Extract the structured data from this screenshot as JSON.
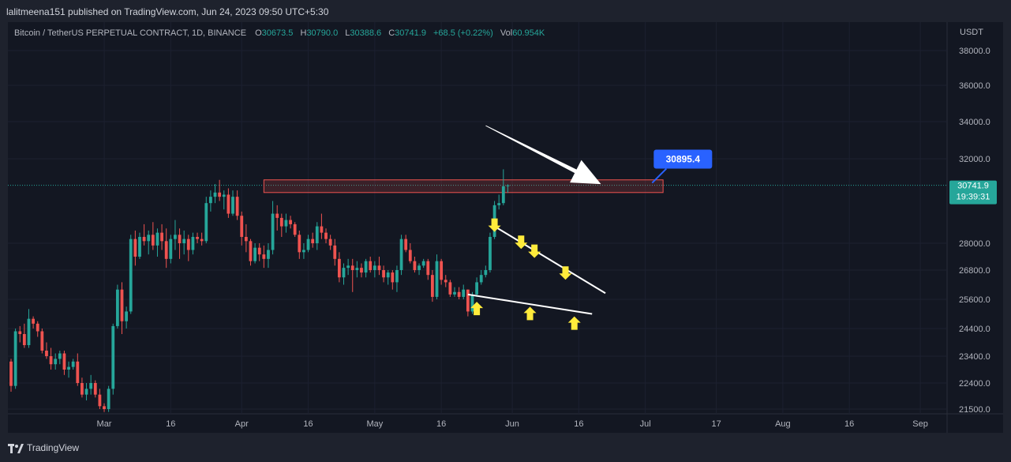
{
  "header": {
    "published": "lalitmeena151 published on TradingView.com, Jun 24, 2023 09:50 UTC+5:30"
  },
  "legend": {
    "symbol": "Bitcoin / TetherUS PERPETUAL CONTRACT, 1D, BINANCE",
    "o_label": "O",
    "o_value": "30673.5",
    "h_label": "H",
    "h_value": "30790.0",
    "l_label": "L",
    "l_value": "30388.6",
    "c_label": "C",
    "c_value": "30741.9",
    "change": "+68.5 (+0.22%)",
    "vol_label": "Vol",
    "vol_value": "60.954K"
  },
  "price_axis": {
    "currency": "USDT",
    "current_price": "30741.9",
    "countdown": "19:39:31"
  },
  "annotation": {
    "callout": "30895.4"
  },
  "footer": {
    "brand": "TradingView"
  },
  "colors": {
    "up": "#26a69a",
    "down": "#ef5350",
    "background": "#131722",
    "callout": "#2962ff",
    "marker": "#ffeb3b"
  },
  "chart_data": {
    "type": "candlestick",
    "symbol": "BTCUSDT.P",
    "interval": "1D",
    "x_axis_ticks": [
      "Mar",
      "16",
      "Apr",
      "16",
      "May",
      "16",
      "Jun",
      "16",
      "Jul",
      "17",
      "Aug",
      "16",
      "Sep"
    ],
    "y_axis_ticks": [
      38000,
      36000,
      34000,
      32000,
      28000,
      26800,
      25600,
      24400,
      23400,
      22400,
      21500
    ],
    "ylim": [
      21300,
      39000
    ],
    "resistance_zone": [
      30400,
      31000
    ],
    "trendlines": [
      {
        "from": "2023-05-28",
        "to": "2023-06-22",
        "y": [
          28800,
          25850
        ]
      },
      {
        "from": "2023-05-22",
        "to": "2023-06-19",
        "y": [
          25800,
          25000
        ]
      }
    ],
    "markers": {
      "down": [
        [
          "2023-05-28",
          28650
        ],
        [
          "2023-06-03",
          27850
        ],
        [
          "2023-06-06",
          27450
        ],
        [
          "2023-06-13",
          26500
        ]
      ],
      "up": [
        [
          "2023-05-24",
          25400
        ],
        [
          "2023-06-05",
          25200
        ],
        [
          "2023-06-15",
          24800
        ]
      ]
    },
    "arrow_target": [
      "2023-06-21",
      30800
    ],
    "callout": {
      "date": "2023-06-24",
      "value": 30895.4
    },
    "last_price": 30741.9,
    "series": [
      {
        "name": "",
        "start_date": "2023-02-08",
        "ohlc": [
          [
            23200,
            23300,
            22100,
            22300
          ],
          [
            22300,
            24400,
            22200,
            24300
          ],
          [
            24300,
            24500,
            23900,
            24200
          ],
          [
            24200,
            24600,
            23700,
            23800
          ],
          [
            23800,
            25200,
            23700,
            24800
          ],
          [
            24800,
            24900,
            24400,
            24600
          ],
          [
            24600,
            24700,
            24100,
            24300
          ],
          [
            24300,
            24400,
            23500,
            23600
          ],
          [
            23600,
            23900,
            23300,
            23400
          ],
          [
            23400,
            23700,
            22900,
            23100
          ],
          [
            23100,
            23500,
            22900,
            23300
          ],
          [
            23300,
            23600,
            23100,
            23500
          ],
          [
            23500,
            23600,
            22700,
            22900
          ],
          [
            22900,
            23200,
            22600,
            23000
          ],
          [
            23000,
            23300,
            22900,
            23200
          ],
          [
            23200,
            23500,
            22300,
            22400
          ],
          [
            22400,
            22600,
            21900,
            22000
          ],
          [
            22000,
            22400,
            21800,
            22200
          ],
          [
            22200,
            22700,
            22000,
            22400
          ],
          [
            22400,
            22500,
            21900,
            22000
          ],
          [
            22000,
            22200,
            21500,
            21600
          ],
          [
            21600,
            21700,
            21400,
            21500
          ],
          [
            21500,
            22300,
            21400,
            22200
          ],
          [
            22200,
            24600,
            22000,
            24500
          ],
          [
            24500,
            26200,
            24400,
            26000
          ],
          [
            26000,
            26300,
            24200,
            24700
          ],
          [
            24700,
            25300,
            24400,
            25100
          ],
          [
            25100,
            28400,
            25000,
            28200
          ],
          [
            28200,
            28600,
            27000,
            27400
          ],
          [
            27400,
            28500,
            27300,
            28300
          ],
          [
            28300,
            28900,
            27900,
            28100
          ],
          [
            28100,
            28600,
            27500,
            28400
          ],
          [
            28400,
            29000,
            27700,
            27900
          ],
          [
            27900,
            28700,
            27400,
            28500
          ],
          [
            28500,
            28900,
            27700,
            28100
          ],
          [
            28100,
            28700,
            26900,
            27300
          ],
          [
            27300,
            28400,
            27100,
            28200
          ],
          [
            28200,
            29100,
            27700,
            28400
          ],
          [
            28400,
            28700,
            27300,
            28000
          ],
          [
            28000,
            28600,
            27500,
            28200
          ],
          [
            28200,
            28400,
            27200,
            27700
          ],
          [
            27700,
            28500,
            27500,
            28300
          ],
          [
            28300,
            28500,
            28000,
            28200
          ],
          [
            28200,
            28500,
            27900,
            28100
          ],
          [
            28100,
            30200,
            28000,
            29900
          ],
          [
            29900,
            30500,
            29500,
            30200
          ],
          [
            30200,
            30800,
            29900,
            30400
          ],
          [
            30400,
            31000,
            30000,
            30200
          ],
          [
            30200,
            30500,
            29600,
            30300
          ],
          [
            30300,
            30600,
            29200,
            29400
          ],
          [
            29400,
            30500,
            29300,
            30200
          ],
          [
            30200,
            30500,
            29100,
            29300
          ],
          [
            29300,
            29500,
            27900,
            28300
          ],
          [
            28300,
            28900,
            27600,
            28100
          ],
          [
            28100,
            28200,
            27000,
            27200
          ],
          [
            27200,
            28000,
            27100,
            27800
          ],
          [
            27800,
            28000,
            27200,
            27500
          ],
          [
            27500,
            27900,
            26900,
            27300
          ],
          [
            27300,
            28000,
            26900,
            27700
          ],
          [
            27700,
            30000,
            27500,
            29400
          ],
          [
            29400,
            29800,
            28600,
            29200
          ],
          [
            29200,
            29400,
            28300,
            28800
          ],
          [
            28800,
            29400,
            28500,
            29100
          ],
          [
            29100,
            29300,
            28700,
            28900
          ],
          [
            28900,
            29000,
            28300,
            28400
          ],
          [
            28400,
            28600,
            27300,
            27600
          ],
          [
            27600,
            28000,
            27300,
            27700
          ],
          [
            27700,
            28400,
            27600,
            28200
          ],
          [
            28200,
            28500,
            27800,
            28000
          ],
          [
            28000,
            29000,
            27700,
            28800
          ],
          [
            28800,
            29400,
            28200,
            28500
          ],
          [
            28500,
            28700,
            28000,
            28200
          ],
          [
            28200,
            28400,
            27700,
            27900
          ],
          [
            27900,
            28200,
            27000,
            27300
          ],
          [
            27300,
            27600,
            26300,
            26500
          ],
          [
            26500,
            27100,
            26200,
            26900
          ],
          [
            26900,
            27300,
            26600,
            27000
          ],
          [
            27000,
            27300,
            25900,
            26800
          ],
          [
            26800,
            27200,
            26500,
            26900
          ],
          [
            26900,
            27100,
            26500,
            26700
          ],
          [
            26700,
            27300,
            26500,
            27200
          ],
          [
            27200,
            27400,
            26700,
            26800
          ],
          [
            26800,
            27200,
            26500,
            27000
          ],
          [
            27000,
            27400,
            26600,
            26800
          ],
          [
            26800,
            27000,
            26300,
            26500
          ],
          [
            26500,
            26800,
            26200,
            26700
          ],
          [
            26700,
            26800,
            26000,
            26300
          ],
          [
            26300,
            27000,
            25900,
            26800
          ],
          [
            26800,
            28400,
            26600,
            28200
          ],
          [
            28200,
            28400,
            27600,
            27700
          ],
          [
            27700,
            28000,
            27100,
            27200
          ],
          [
            27200,
            27400,
            26700,
            26800
          ],
          [
            26800,
            27100,
            26600,
            27000
          ],
          [
            27000,
            27300,
            26900,
            27200
          ],
          [
            27200,
            27300,
            26400,
            26600
          ],
          [
            26600,
            26800,
            25500,
            25700
          ],
          [
            25700,
            27500,
            25600,
            27200
          ],
          [
            27200,
            27300,
            26200,
            26400
          ],
          [
            26400,
            26600,
            26100,
            26300
          ],
          [
            26300,
            26400,
            25700,
            25800
          ],
          [
            25800,
            26100,
            25700,
            25900
          ],
          [
            25900,
            26100,
            25600,
            25700
          ],
          [
            25700,
            26200,
            25600,
            26000
          ],
          [
            26000,
            26000,
            24900,
            25100
          ],
          [
            25100,
            25900,
            25000,
            25800
          ],
          [
            25800,
            26500,
            25700,
            26300
          ],
          [
            26300,
            26800,
            26200,
            26600
          ],
          [
            26600,
            27000,
            26500,
            26800
          ],
          [
            26800,
            28500,
            26700,
            28300
          ],
          [
            28300,
            30000,
            28200,
            29800
          ],
          [
            29800,
            30300,
            29600,
            29900
          ],
          [
            29900,
            31500,
            29800,
            30700
          ],
          [
            30700,
            30790,
            30388.6,
            30741.9
          ]
        ]
      }
    ]
  }
}
